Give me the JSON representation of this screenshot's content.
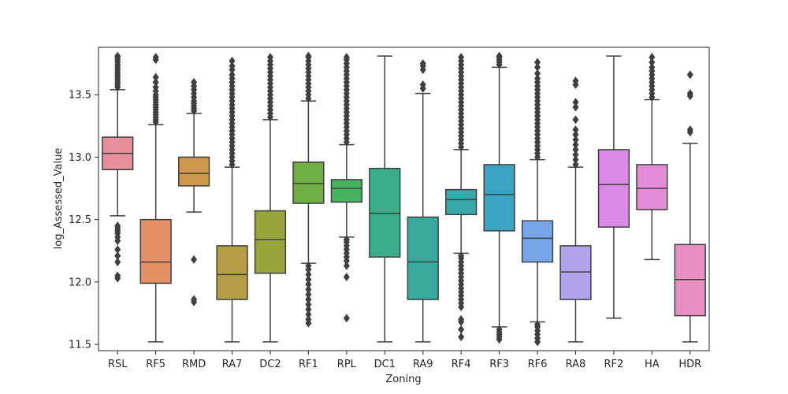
{
  "chart_data": {
    "type": "box",
    "title": "",
    "xlabel": "Zoning",
    "ylabel": "log_Assessed_Value",
    "ylim": [
      11.45,
      13.88
    ],
    "yticks": [
      11.5,
      12.0,
      12.5,
      13.0,
      13.5
    ],
    "ytick_labels": [
      "11.5",
      "12.0",
      "12.5",
      "13.0",
      "13.5"
    ],
    "grid": false,
    "legend": "none",
    "categories": [
      {
        "name": "RSL",
        "color": "#e7909b",
        "whisker_low": 12.53,
        "q1": 12.9,
        "median": 13.03,
        "q3": 13.16,
        "whisker_high": 13.54,
        "outliers_low": [
          12.03,
          12.05,
          12.16,
          12.21,
          12.26,
          12.33,
          12.36,
          12.39,
          12.41,
          12.43,
          12.45
        ],
        "outliers_high": [
          13.56,
          13.58,
          13.6,
          13.62,
          13.64,
          13.66,
          13.68,
          13.7,
          13.72,
          13.74,
          13.76,
          13.78,
          13.8,
          13.81
        ]
      },
      {
        "name": "RF5",
        "color": "#e39064",
        "whisker_low": 11.52,
        "q1": 11.99,
        "median": 12.16,
        "q3": 12.5,
        "whisker_high": 13.26,
        "outliers_low": [],
        "outliers_high": [
          13.28,
          13.3,
          13.32,
          13.34,
          13.36,
          13.38,
          13.4,
          13.42,
          13.44,
          13.46,
          13.48,
          13.5,
          13.53,
          13.56,
          13.6,
          13.64,
          13.78,
          13.8
        ]
      },
      {
        "name": "RMD",
        "color": "#cf9749",
        "whisker_low": 12.56,
        "q1": 12.77,
        "median": 12.87,
        "q3": 13.0,
        "whisker_high": 13.35,
        "outliers_low": [
          11.84,
          11.86,
          12.18
        ],
        "outliers_high": [
          13.37,
          13.39,
          13.41,
          13.43,
          13.45,
          13.48,
          13.51,
          13.54,
          13.57,
          13.6
        ]
      },
      {
        "name": "RA7",
        "color": "#b39d45",
        "whisker_low": 11.52,
        "q1": 11.86,
        "median": 12.06,
        "q3": 12.29,
        "whisker_high": 12.92,
        "outliers_low": [],
        "outliers_high": [
          12.94,
          12.97,
          13.0,
          13.03,
          13.06,
          13.09,
          13.12,
          13.15,
          13.18,
          13.21,
          13.24,
          13.27,
          13.3,
          13.33,
          13.36,
          13.39,
          13.42,
          13.45,
          13.48,
          13.51,
          13.54,
          13.57,
          13.6,
          13.63,
          13.66,
          13.7,
          13.73,
          13.77
        ]
      },
      {
        "name": "DC2",
        "color": "#99a53c",
        "whisker_low": 11.52,
        "q1": 12.07,
        "median": 12.34,
        "q3": 12.57,
        "whisker_high": 13.3,
        "outliers_low": [],
        "outliers_high": [
          13.32,
          13.35,
          13.38,
          13.41,
          13.44,
          13.47,
          13.5,
          13.53,
          13.56,
          13.59,
          13.62,
          13.65,
          13.68,
          13.71,
          13.74,
          13.77,
          13.8
        ]
      },
      {
        "name": "RF1",
        "color": "#6fae45",
        "whisker_low": 12.15,
        "q1": 12.63,
        "median": 12.79,
        "q3": 12.96,
        "whisker_high": 13.45,
        "outliers_low": [
          11.67,
          11.7,
          11.74,
          11.78,
          11.82,
          11.86,
          11.9,
          11.94,
          11.98,
          12.02,
          12.06,
          12.1,
          12.13
        ],
        "outliers_high": [
          13.47,
          13.5,
          13.53,
          13.56,
          13.59,
          13.62,
          13.65,
          13.68,
          13.71,
          13.74,
          13.77,
          13.8,
          13.81
        ]
      },
      {
        "name": "RPL",
        "color": "#47b25f",
        "whisker_low": 12.36,
        "q1": 12.64,
        "median": 12.75,
        "q3": 12.82,
        "whisker_high": 13.1,
        "outliers_low": [
          11.71,
          12.04,
          12.13,
          12.17,
          12.2,
          12.23,
          12.26,
          12.29,
          12.32,
          12.34
        ],
        "outliers_high": [
          13.12,
          13.15,
          13.18,
          13.21,
          13.24,
          13.27,
          13.3,
          13.33,
          13.36,
          13.39,
          13.42,
          13.45,
          13.48,
          13.51,
          13.54,
          13.57,
          13.6,
          13.63,
          13.66,
          13.69,
          13.72,
          13.75,
          13.78,
          13.8
        ]
      },
      {
        "name": "DC1",
        "color": "#3aae8a",
        "whisker_low": 11.52,
        "q1": 12.2,
        "median": 12.55,
        "q3": 12.91,
        "whisker_high": 13.81,
        "outliers_low": [],
        "outliers_high": []
      },
      {
        "name": "RA9",
        "color": "#39aa9c",
        "whisker_low": 11.52,
        "q1": 11.86,
        "median": 12.16,
        "q3": 12.52,
        "whisker_high": 13.51,
        "outliers_low": [],
        "outliers_high": [
          13.55,
          13.58,
          13.7,
          13.73,
          13.75
        ]
      },
      {
        "name": "RF4",
        "color": "#3aa7ab",
        "whisker_low": 12.23,
        "q1": 12.54,
        "median": 12.66,
        "q3": 12.74,
        "whisker_high": 13.06,
        "outliers_low": [
          11.56,
          11.62,
          11.68,
          11.7,
          11.8,
          11.83,
          11.86,
          11.89,
          11.92,
          11.95,
          11.98,
          12.01,
          12.04,
          12.07,
          12.1,
          12.13,
          12.16,
          12.19,
          12.21
        ],
        "outliers_high": [
          13.08,
          13.11,
          13.14,
          13.17,
          13.2,
          13.23,
          13.26,
          13.29,
          13.32,
          13.35,
          13.38,
          13.41,
          13.44,
          13.47,
          13.5,
          13.53,
          13.56,
          13.59,
          13.62,
          13.65,
          13.68,
          13.71,
          13.74,
          13.77,
          13.8
        ]
      },
      {
        "name": "RF3",
        "color": "#3ba3c4",
        "whisker_low": 11.64,
        "q1": 12.41,
        "median": 12.7,
        "q3": 12.94,
        "whisker_high": 13.72,
        "outliers_low": [
          11.54,
          11.56,
          11.58,
          11.6,
          11.62
        ],
        "outliers_high": [
          13.74,
          13.76,
          13.78,
          13.8,
          13.81
        ]
      },
      {
        "name": "RF6",
        "color": "#76a6e8",
        "whisker_low": 11.68,
        "q1": 12.16,
        "median": 12.35,
        "q3": 12.49,
        "whisker_high": 12.98,
        "outliers_low": [
          11.52,
          11.55,
          11.58,
          11.61,
          11.64,
          11.66
        ],
        "outliers_high": [
          13.0,
          13.03,
          13.06,
          13.09,
          13.12,
          13.15,
          13.18,
          13.21,
          13.24,
          13.27,
          13.3,
          13.33,
          13.36,
          13.39,
          13.42,
          13.45,
          13.48,
          13.51,
          13.54,
          13.57,
          13.6,
          13.63,
          13.67,
          13.72,
          13.76
        ]
      },
      {
        "name": "RA8",
        "color": "#b2a3eb",
        "whisker_low": 11.52,
        "q1": 11.86,
        "median": 12.08,
        "q3": 12.29,
        "whisker_high": 12.92,
        "outliers_low": [],
        "outliers_high": [
          12.94,
          12.98,
          13.02,
          13.06,
          13.1,
          13.14,
          13.18,
          13.22,
          13.3,
          13.4,
          13.44,
          13.58,
          13.61
        ]
      },
      {
        "name": "RF2",
        "color": "#d98be6",
        "whisker_low": 11.71,
        "q1": 12.44,
        "median": 12.78,
        "q3": 13.06,
        "whisker_high": 13.81,
        "outliers_low": [],
        "outliers_high": []
      },
      {
        "name": "HA",
        "color": "#e68bd7",
        "whisker_low": 12.18,
        "q1": 12.58,
        "median": 12.75,
        "q3": 12.94,
        "whisker_high": 13.46,
        "outliers_low": [],
        "outliers_high": [
          13.48,
          13.51,
          13.54,
          13.57,
          13.6,
          13.63,
          13.66,
          13.69,
          13.72,
          13.76,
          13.8
        ]
      },
      {
        "name": "HDR",
        "color": "#ea8fc2",
        "whisker_low": 11.52,
        "q1": 11.73,
        "median": 12.02,
        "q3": 12.3,
        "whisker_high": 13.11,
        "outliers_low": [],
        "outliers_high": [
          13.2,
          13.22,
          13.49,
          13.51,
          13.66
        ]
      }
    ]
  }
}
